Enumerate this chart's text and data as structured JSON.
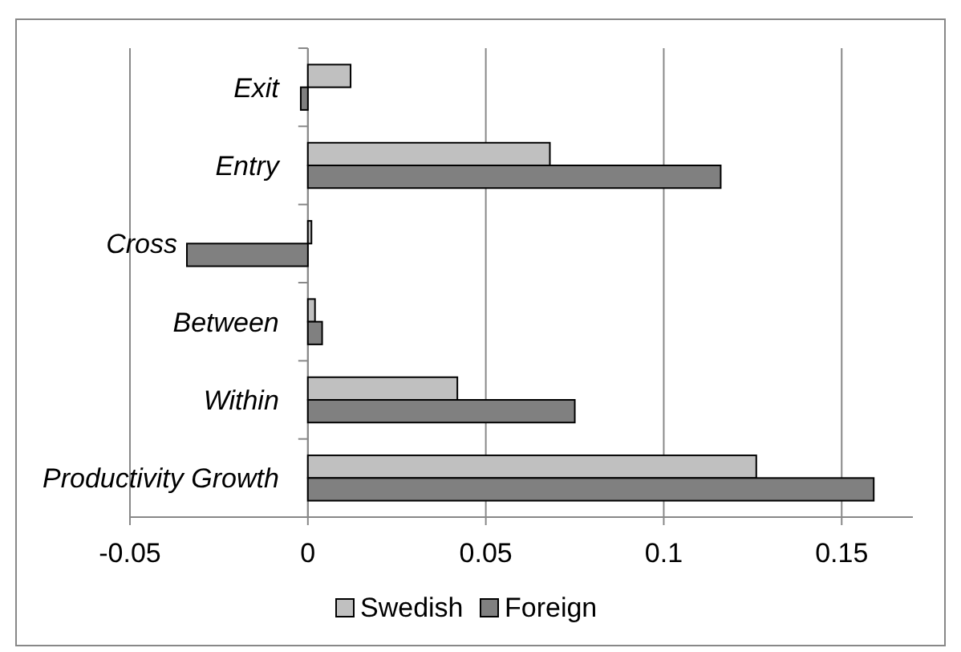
{
  "chart_data": {
    "type": "bar",
    "orientation": "horizontal",
    "categories": [
      "Exit",
      "Entry",
      "Cross",
      "Between",
      "Within",
      "Productivity Growth"
    ],
    "series": [
      {
        "name": "Swedish",
        "color": "#c0c0c0",
        "values": [
          0.012,
          0.068,
          0.001,
          0.002,
          0.042,
          0.126
        ]
      },
      {
        "name": "Foreign",
        "color": "#808080",
        "values": [
          -0.002,
          0.116,
          -0.034,
          0.004,
          0.075,
          0.159
        ]
      }
    ],
    "xlim": [
      -0.05,
      0.17
    ],
    "xticks": [
      -0.05,
      0,
      0.05,
      0.1,
      0.15
    ],
    "grid": "x",
    "legend": "bottom"
  }
}
